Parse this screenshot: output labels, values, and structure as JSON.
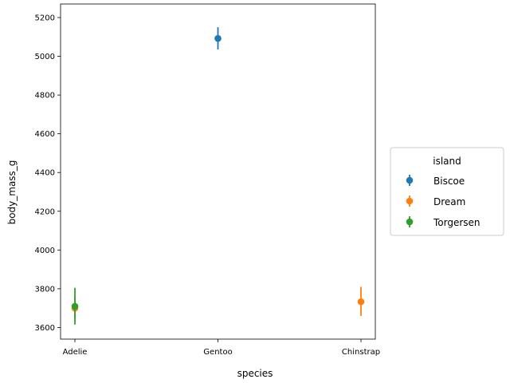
{
  "chart_data": {
    "type": "scatter",
    "title": "",
    "xlabel": "species",
    "ylabel": "body_mass_g",
    "categories": [
      "Adelie",
      "Gentoo",
      "Chinstrap"
    ],
    "ylim": [
      3540,
      5270
    ],
    "yticks": [
      3600,
      3800,
      4000,
      4200,
      4400,
      4600,
      4800,
      5000,
      5200
    ],
    "grid": false,
    "legend": {
      "title": "island",
      "placement": "outside-right"
    },
    "series": [
      {
        "name": "Biscoe",
        "color": "#1f77b4",
        "points": [
          {
            "category": "Gentoo",
            "value": 5092,
            "err_low": 5035,
            "err_high": 5150
          }
        ]
      },
      {
        "name": "Dream",
        "color": "#ff7f0e",
        "points": [
          {
            "category": "Adelie",
            "value": 3700,
            "err_low": 3650,
            "err_high": 3760
          },
          {
            "category": "Chinstrap",
            "value": 3733,
            "err_low": 3660,
            "err_high": 3810
          }
        ]
      },
      {
        "name": "Torgersen",
        "color": "#2ca02c",
        "points": [
          {
            "category": "Adelie",
            "value": 3709,
            "err_low": 3615,
            "err_high": 3805
          }
        ]
      }
    ]
  }
}
